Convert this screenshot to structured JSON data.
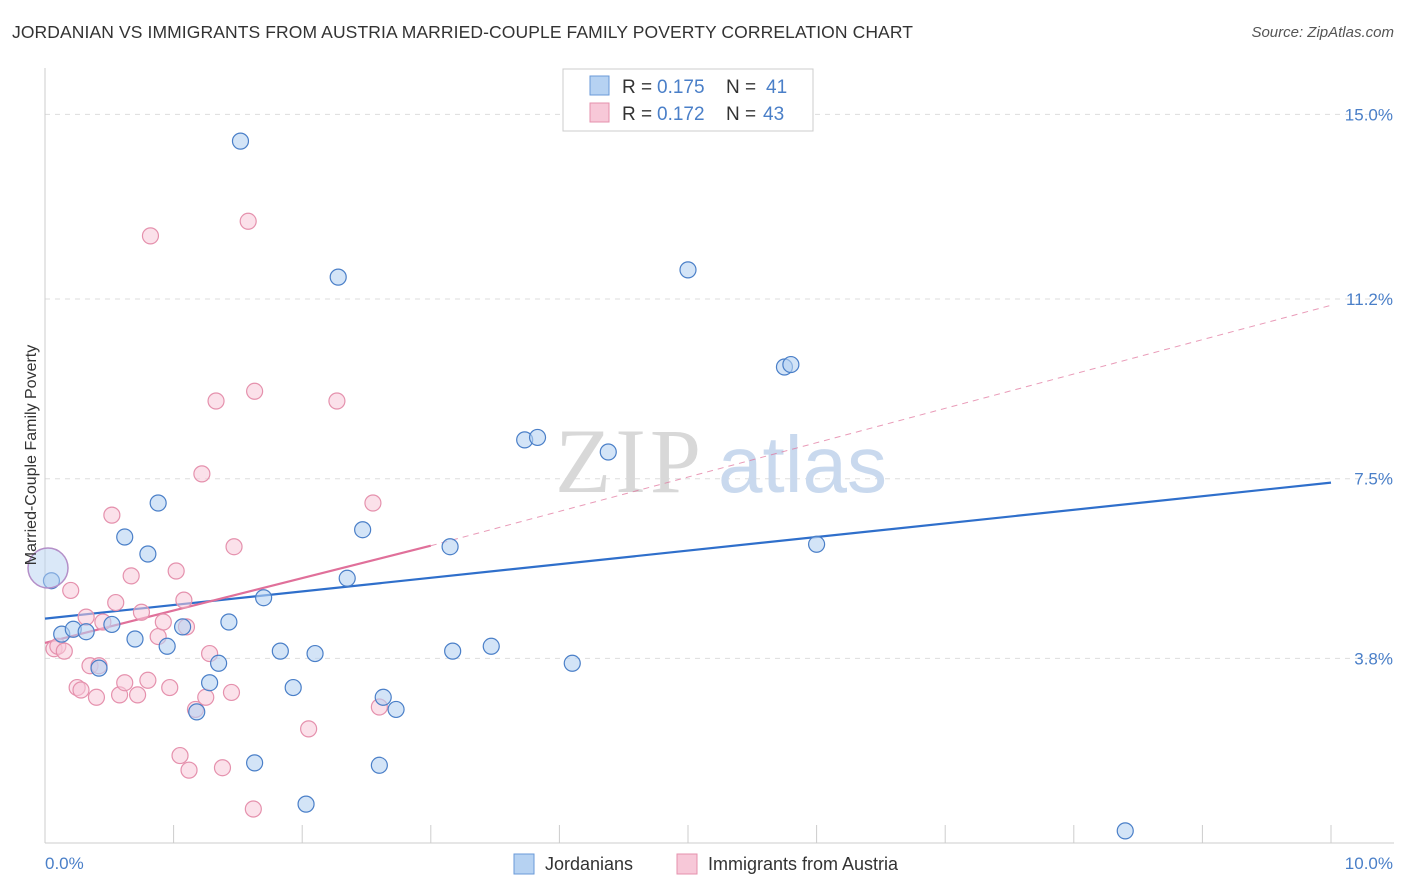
{
  "header": {
    "title": "JORDANIAN VS IMMIGRANTS FROM AUSTRIA MARRIED-COUPLE FAMILY POVERTY CORRELATION CHART",
    "source": "Source: ZipAtlas.com"
  },
  "watermark": {
    "zip": "ZIP",
    "atlas": "atlas"
  },
  "colors": {
    "blue": "#4a7fc8",
    "blue_fill": "#b6d2f2",
    "blue_line": "#2f6fcb",
    "pink": "#e591ad",
    "pink_fill": "#f7c8d8",
    "pink_line": "#e0709a",
    "grid": "#dddddd"
  },
  "legend": {
    "r_label": "R =",
    "n_label": "N =",
    "series1_r": "0.175",
    "series1_n": "41",
    "series2_r": "0.172",
    "series2_n": "43"
  },
  "chart_data": {
    "type": "scatter",
    "title": "JORDANIAN VS IMMIGRANTS FROM AUSTRIA MARRIED-COUPLE FAMILY POVERTY CORRELATION CHART",
    "xlabel": "",
    "ylabel": "Married-Couple Family Poverty",
    "xlim": [
      0,
      10
    ],
    "ylim": [
      0,
      15.75
    ],
    "x_tick_labels": [
      "0.0%",
      "10.0%"
    ],
    "y_ticks": [
      3.8,
      7.5,
      11.2,
      15.0
    ],
    "y_tick_labels": [
      "3.8%",
      "7.5%",
      "11.2%",
      "15.0%"
    ],
    "legend_position": "top-center",
    "series": [
      {
        "name": "Jordanians",
        "r": 0.175,
        "n": 41,
        "points": [
          [
            0.05,
            5.4
          ],
          [
            0.13,
            4.3
          ],
          [
            0.22,
            4.4
          ],
          [
            0.32,
            4.35
          ],
          [
            0.42,
            3.6
          ],
          [
            0.52,
            4.5
          ],
          [
            0.62,
            6.3
          ],
          [
            0.7,
            4.2
          ],
          [
            0.8,
            5.95
          ],
          [
            0.88,
            7.0
          ],
          [
            0.95,
            4.05
          ],
          [
            1.07,
            4.45
          ],
          [
            1.18,
            2.7
          ],
          [
            1.28,
            3.3
          ],
          [
            1.35,
            3.7
          ],
          [
            1.43,
            4.55
          ],
          [
            1.52,
            14.45
          ],
          [
            1.63,
            1.65
          ],
          [
            1.7,
            5.05
          ],
          [
            1.83,
            3.95
          ],
          [
            1.93,
            3.2
          ],
          [
            2.03,
            0.8
          ],
          [
            2.1,
            3.9
          ],
          [
            2.28,
            11.65
          ],
          [
            2.35,
            5.45
          ],
          [
            2.47,
            6.45
          ],
          [
            2.6,
            1.6
          ],
          [
            2.63,
            3.0
          ],
          [
            2.73,
            2.75
          ],
          [
            3.15,
            6.1
          ],
          [
            3.17,
            3.95
          ],
          [
            3.47,
            4.05
          ],
          [
            3.73,
            8.3
          ],
          [
            3.83,
            8.35
          ],
          [
            4.1,
            3.7
          ],
          [
            4.38,
            8.05
          ],
          [
            5.0,
            11.8
          ],
          [
            5.75,
            9.8
          ],
          [
            5.8,
            9.85
          ],
          [
            6.0,
            6.15
          ],
          [
            8.4,
            0.25
          ]
        ],
        "trend": {
          "x": [
            0,
            10
          ],
          "y": [
            4.62,
            7.42
          ]
        }
      },
      {
        "name": "Immigrants from Austria",
        "r": 0.172,
        "n": 43,
        "points": [
          [
            0.07,
            4.0
          ],
          [
            0.1,
            4.05
          ],
          [
            0.15,
            3.95
          ],
          [
            0.2,
            5.2
          ],
          [
            0.25,
            3.2
          ],
          [
            0.28,
            3.15
          ],
          [
            0.32,
            4.65
          ],
          [
            0.35,
            3.65
          ],
          [
            0.4,
            3.0
          ],
          [
            0.45,
            4.55
          ],
          [
            0.52,
            6.75
          ],
          [
            0.55,
            4.95
          ],
          [
            0.58,
            3.05
          ],
          [
            0.62,
            3.3
          ],
          [
            0.67,
            5.5
          ],
          [
            0.72,
            3.05
          ],
          [
            0.75,
            4.75
          ],
          [
            0.8,
            3.35
          ],
          [
            0.82,
            12.5
          ],
          [
            0.88,
            4.25
          ],
          [
            0.92,
            4.55
          ],
          [
            0.97,
            3.2
          ],
          [
            1.02,
            5.6
          ],
          [
            1.05,
            1.8
          ],
          [
            1.08,
            5.0
          ],
          [
            1.1,
            4.45
          ],
          [
            1.12,
            1.5
          ],
          [
            1.17,
            2.75
          ],
          [
            1.22,
            7.6
          ],
          [
            1.25,
            3.0
          ],
          [
            1.28,
            3.9
          ],
          [
            1.33,
            9.1
          ],
          [
            1.38,
            1.55
          ],
          [
            1.45,
            3.1
          ],
          [
            1.47,
            6.1
          ],
          [
            1.58,
            12.8
          ],
          [
            1.63,
            9.3
          ],
          [
            1.62,
            0.7
          ],
          [
            2.05,
            2.35
          ],
          [
            2.27,
            9.1
          ],
          [
            2.55,
            7.0
          ],
          [
            2.6,
            2.8
          ],
          [
            0.42,
            3.65
          ]
        ],
        "trend": {
          "x": [
            0,
            3.0
          ],
          "y": [
            4.12,
            6.12
          ]
        },
        "trend_extension": {
          "x": [
            3.0,
            10
          ],
          "y": [
            6.12,
            11.07
          ]
        }
      }
    ]
  },
  "bottom_legend": {
    "items": [
      "Jordanians",
      "Immigrants from Austria"
    ]
  }
}
